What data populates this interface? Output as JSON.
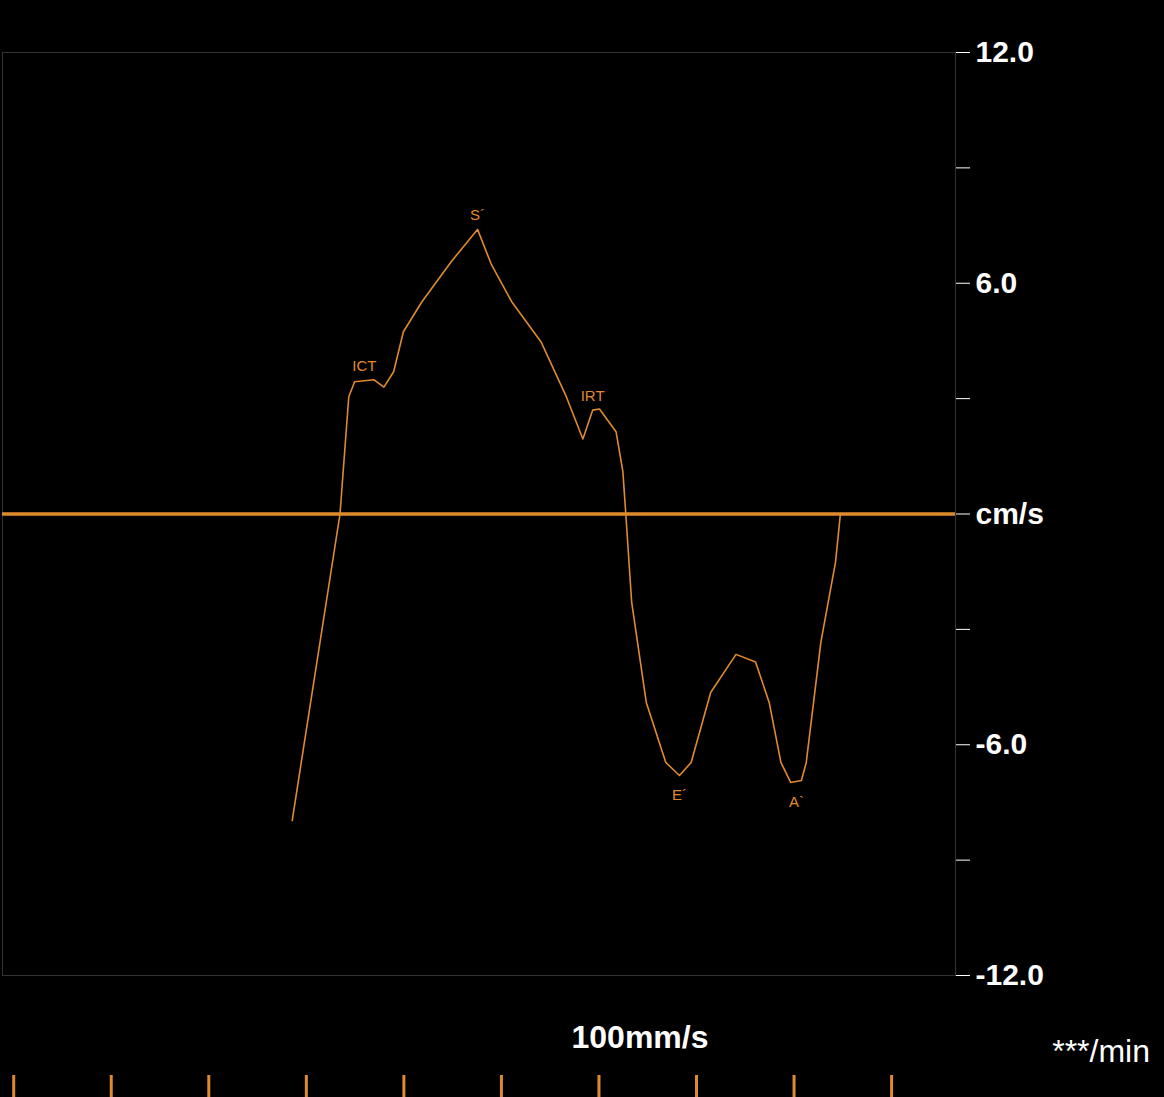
{
  "chart_data": {
    "type": "line",
    "x": [
      2.85,
      3.34,
      3.43,
      3.49,
      3.69,
      3.79,
      3.89,
      3.99,
      4.18,
      4.48,
      4.75,
      4.89,
      5.1,
      5.4,
      5.66,
      5.83,
      5.93,
      6.0,
      6.17,
      6.24,
      6.27,
      6.33,
      6.48,
      6.68,
      6.82,
      6.94,
      7.14,
      7.4,
      7.6,
      7.74,
      7.86,
      7.96,
      8.07,
      8.12,
      8.27,
      8.42,
      8.47
    ],
    "values": [
      -7.97,
      0,
      3.05,
      3.44,
      3.49,
      3.3,
      3.7,
      4.74,
      5.52,
      6.56,
      7.4,
      6.5,
      5.52,
      4.48,
      3.05,
      1.95,
      2.7,
      2.73,
      2.14,
      1.1,
      0,
      -2.29,
      -4.9,
      -6.46,
      -6.8,
      -6.46,
      -4.64,
      -3.65,
      -3.85,
      -4.9,
      -6.46,
      -6.98,
      -6.93,
      -6.46,
      -3.33,
      -1.25,
      0
    ],
    "color": "#e08a2e",
    "xlim": [
      -0.12,
      9.65
    ],
    "xticks": [
      0,
      1,
      2,
      3,
      4,
      5,
      6,
      7,
      8,
      9
    ],
    "ylim": [
      -12,
      12
    ],
    "yticks": [
      {
        "value": 12,
        "label": "12.0"
      },
      {
        "value": 9,
        "label": null
      },
      {
        "value": 6,
        "label": "6.0"
      },
      {
        "value": 3,
        "label": null
      },
      {
        "value": 0,
        "label": "cm/s"
      },
      {
        "value": -3,
        "label": null
      },
      {
        "value": -6,
        "label": "-6.0"
      },
      {
        "value": -9,
        "label": null
      },
      {
        "value": -12,
        "label": "-12.0"
      }
    ],
    "tick_labels": "y",
    "annotations": [
      {
        "text": "ICT",
        "x": 3.59,
        "y": 3.49
      },
      {
        "text": "S´",
        "x": 4.75,
        "y": 7.4
      },
      {
        "text": "IRT",
        "x": 5.93,
        "y": 2.7
      },
      {
        "text": "E´",
        "x": 6.82,
        "y": -6.8
      },
      {
        "text": "A`",
        "x": 8.02,
        "y": -6.98
      }
    ],
    "sweep_speed": "100mm/s",
    "heart_rate": "***/min"
  }
}
